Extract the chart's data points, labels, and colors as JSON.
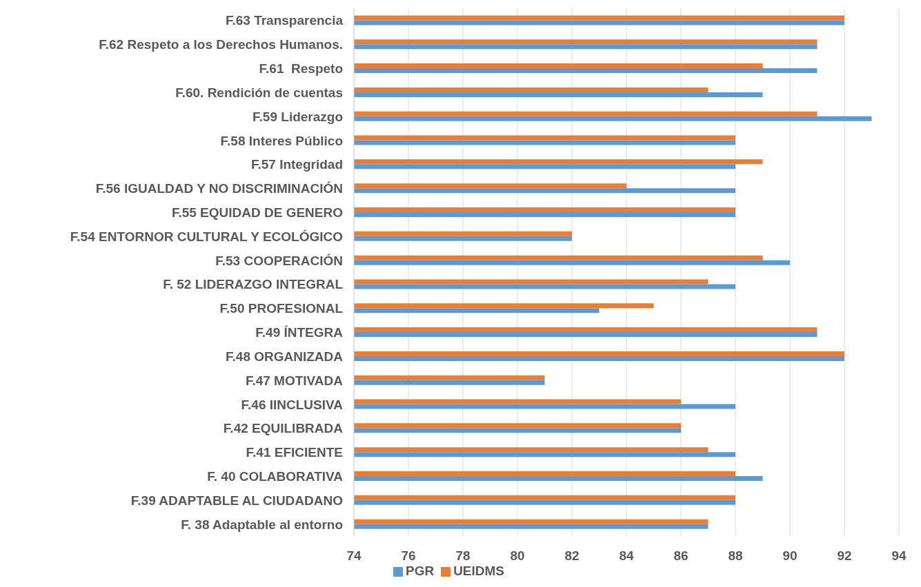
{
  "chart_data": {
    "type": "bar",
    "orientation": "horizontal",
    "categories": [
      "F.63 Transparencia",
      "F.62 Respeto a los Derechos Humanos.",
      "F.61  Respeto",
      "F.60. Rendición de cuentas",
      "F.59 Liderazgo",
      "F.58 Interes Público",
      "F.57 Integridad",
      "F.56 IGUALDAD Y NO DISCRIMINACIÓN",
      "F.55 EQUIDAD DE GENERO",
      "F.54 ENTORNOR CULTURAL Y ECOLÓGICO",
      "F.53 COOPERACIÓN",
      "F. 52 LIDERAZGO INTEGRAL",
      "F.50 PROFESIONAL",
      "F.49 ÍNTEGRA",
      "F.48 ORGANIZADA",
      "F.47 MOTIVADA",
      "F.46 IINCLUSIVA",
      "F.42 EQUILIBRADA",
      "F.41 EFICIENTE",
      "F. 40 COLABORATIVA",
      "F.39 ADAPTABLE AL CIUDADANO",
      "F. 38 Adaptable al entorno"
    ],
    "series": [
      {
        "name": "UEIDMS",
        "color": "#ed7d31",
        "values": [
          92,
          91,
          89,
          87,
          91,
          88,
          89,
          84,
          88,
          82,
          89,
          87,
          85,
          91,
          92,
          81,
          86,
          86,
          87,
          88,
          88,
          87
        ]
      },
      {
        "name": "PGR",
        "color": "#5b9bd5",
        "values": [
          92,
          91,
          91,
          89,
          93,
          88,
          88,
          88,
          88,
          82,
          90,
          88,
          83,
          91,
          92,
          81,
          88,
          86,
          88,
          89,
          88,
          87
        ]
      }
    ],
    "xlim": [
      74,
      94
    ],
    "xticks": [
      74,
      76,
      78,
      80,
      82,
      84,
      86,
      88,
      90,
      92,
      94
    ],
    "grid": "x",
    "legend": "bottom"
  }
}
